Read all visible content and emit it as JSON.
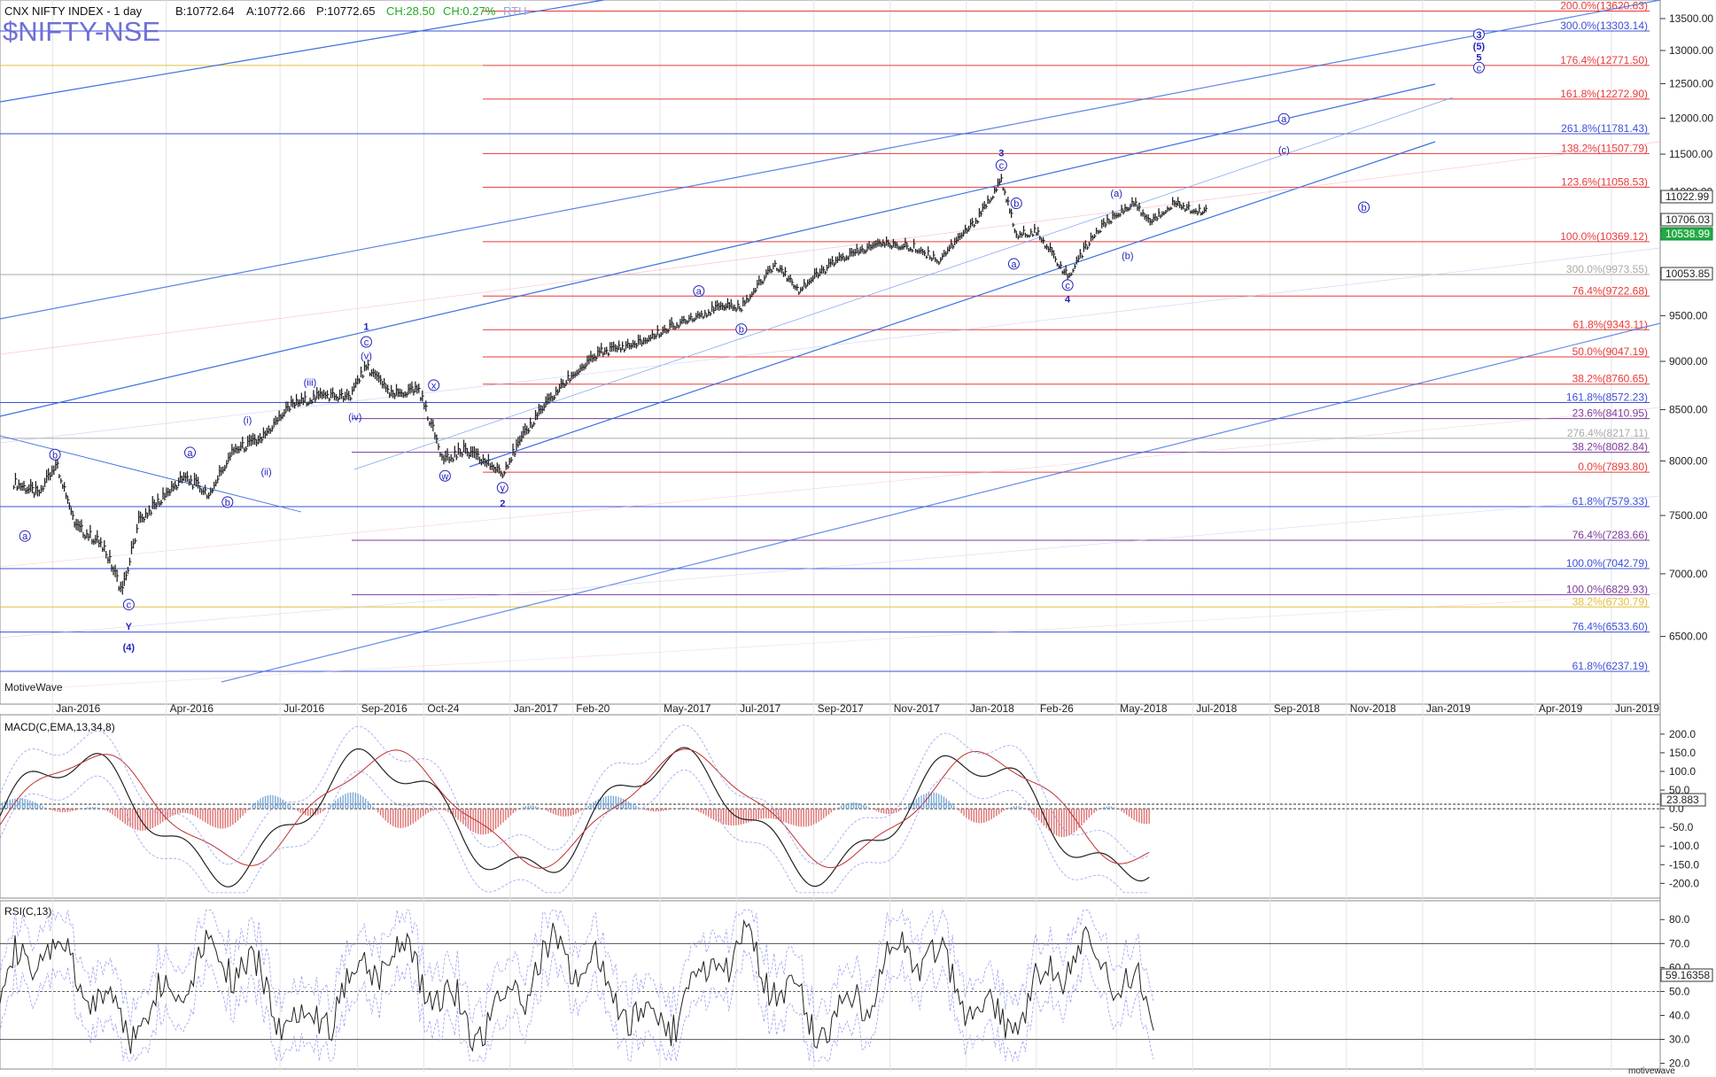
{
  "header": {
    "title": "CNX NIFTY INDEX - 1 day",
    "bid": "B:10772.64",
    "ask": "A:10772.66",
    "price": "P:10772.65",
    "change": "CH:28.50",
    "change_pct": "CH:0.27%",
    "session": "RTH",
    "symbol": "$NIFTY-NSE",
    "watermark": "MotiveWave",
    "footer_brand": "motivewave"
  },
  "colors": {
    "red_fib": "#e83a3a",
    "blue_fib": "#3d4fd8",
    "purple_fib": "#7a3a9a",
    "yellow_fib": "#e0c040",
    "gray_fib": "#aaaaaa",
    "channel": "#3d6fe0",
    "price_bar": "#222222",
    "macd_pos": "#7aaad8",
    "macd_neg": "#e07070",
    "wave_label": "#2222bb"
  },
  "chart_data": [
    {
      "type": "line",
      "title": "CNX NIFTY INDEX - 1 day",
      "y_ticks": [
        6500,
        7000,
        7500,
        8000,
        8500,
        9000,
        9500,
        10000,
        10500,
        11000,
        11500,
        12000,
        12500,
        13000,
        13500
      ],
      "y_tick_labels": [
        "6500.00",
        "7000.00",
        "7500.00",
        "8000.00",
        "8500.00",
        "9000.00",
        "9500.00",
        "10000.00",
        "10500.00",
        "11000.00",
        "11500.00",
        "12000.00",
        "12500.00",
        "13000.00",
        "13500.00"
      ],
      "ylim": [
        6000,
        13800
      ],
      "x_ticks": [
        "Jan-2016",
        "Apr-2016",
        "Jul-2016",
        "Sep-2016",
        "Oct-24",
        "Jan-2017",
        "Feb-20",
        "May-2017",
        "Jul-2017",
        "Sep-2017",
        "Nov-2017",
        "Jan-2018",
        "Feb-26",
        "May-2018",
        "Jul-2018",
        "Sep-2018",
        "Nov-2018",
        "Jan-2019",
        "Apr-2019",
        "Jun-2019"
      ],
      "close_path": [
        [
          "2015-12-01",
          7800
        ],
        [
          "2015-12-20",
          7700
        ],
        [
          "2016-01-05",
          7950
        ],
        [
          "2016-01-20",
          7400
        ],
        [
          "2016-02-10",
          7250
        ],
        [
          "2016-02-26",
          6850
        ],
        [
          "2016-03-10",
          7450
        ],
        [
          "2016-03-28",
          7650
        ],
        [
          "2016-04-15",
          7850
        ],
        [
          "2016-05-05",
          7700
        ],
        [
          "2016-05-25",
          8100
        ],
        [
          "2016-06-15",
          8200
        ],
        [
          "2016-07-10",
          8550
        ],
        [
          "2016-08-05",
          8650
        ],
        [
          "2016-08-25",
          8620
        ],
        [
          "2016-09-08",
          8950
        ],
        [
          "2016-09-28",
          8650
        ],
        [
          "2016-10-20",
          8700
        ],
        [
          "2016-11-09",
          8000
        ],
        [
          "2016-11-25",
          8100
        ],
        [
          "2016-12-26",
          7900
        ],
        [
          "2017-01-20",
          8400
        ],
        [
          "2017-02-15",
          8800
        ],
        [
          "2017-03-15",
          9100
        ],
        [
          "2017-04-15",
          9200
        ],
        [
          "2017-05-20",
          9450
        ],
        [
          "2017-06-20",
          9600
        ],
        [
          "2017-07-05",
          9600
        ],
        [
          "2017-08-01",
          10100
        ],
        [
          "2017-08-20",
          9800
        ],
        [
          "2017-09-20",
          10150
        ],
        [
          "2017-10-25",
          10350
        ],
        [
          "2017-11-20",
          10300
        ],
        [
          "2017-12-10",
          10150
        ],
        [
          "2018-01-10",
          10650
        ],
        [
          "2018-01-29",
          11150
        ],
        [
          "2018-02-10",
          10450
        ],
        [
          "2018-02-26",
          10500
        ],
        [
          "2018-03-23",
          9950
        ],
        [
          "2018-04-15",
          10500
        ],
        [
          "2018-05-01",
          10700
        ],
        [
          "2018-05-15",
          10850
        ],
        [
          "2018-05-28",
          10600
        ],
        [
          "2018-06-15",
          10850
        ],
        [
          "2018-07-05",
          10750
        ],
        [
          "2018-07-13",
          10772
        ]
      ],
      "last_prices": {
        "current": "10706.03",
        "box1": "11022.99",
        "box2": "10538.99",
        "box3": "10053.85"
      }
    },
    {
      "type": "line",
      "title": "MACD(C,EMA,13,34,8)",
      "y_ticks": [
        -200,
        -150,
        -100,
        -50,
        0,
        50,
        100,
        150,
        200
      ],
      "y_tick_labels": [
        "-200.0",
        "-150.0",
        "-100.0",
        "-50.0",
        "0.0",
        "50.0",
        "100.0",
        "150.0",
        "200.0"
      ],
      "ylim": [
        -230,
        240
      ],
      "last_value": "23.883"
    },
    {
      "type": "line",
      "title": "RSI(C,13)",
      "y_ticks": [
        20,
        30,
        40,
        50,
        60,
        70,
        80
      ],
      "y_tick_labels": [
        "20.0",
        "30.0",
        "40.0",
        "50.0",
        "60.0",
        "70.0",
        "80.0"
      ],
      "ylim": [
        18,
        86
      ],
      "last_value": "59.16358",
      "levels": [
        30,
        50,
        70
      ]
    }
  ],
  "fib_levels": [
    {
      "text": "200.0%(13620.63)",
      "kind": "red",
      "price": 13620.63
    },
    {
      "text": "300.0%(13303.14)",
      "kind": "blue",
      "price": 13303.14
    },
    {
      "text": "176.4%(12771.50)",
      "kind": "red",
      "price": 12771.5
    },
    {
      "text": "161.8%(12272.90)",
      "kind": "red",
      "price": 12272.9
    },
    {
      "text": "261.8%(11781.43)",
      "kind": "blue",
      "price": 11781.43
    },
    {
      "text": "138.2%(11507.79)",
      "kind": "red",
      "price": 11507.79
    },
    {
      "text": "123.6%(11058.53)",
      "kind": "red",
      "price": 11058.53
    },
    {
      "text": "100.0%(10369.12)",
      "kind": "red",
      "price": 10369.12
    },
    {
      "text": "300.0%(9973.55)",
      "kind": "gray",
      "price": 9973.55
    },
    {
      "text": "76.4%(9722.68)",
      "kind": "red",
      "price": 9722.68
    },
    {
      "text": "61.8%(9343.11)",
      "kind": "red",
      "price": 9343.11
    },
    {
      "text": "50.0%(9047.19)",
      "kind": "red",
      "price": 9047.19
    },
    {
      "text": "38.2%(8760.65)",
      "kind": "red",
      "price": 8760.65
    },
    {
      "text": "161.8%(8572.23)",
      "kind": "blue",
      "price": 8572.23
    },
    {
      "text": "23.6%(8410.95)",
      "kind": "purple",
      "price": 8410.95
    },
    {
      "text": "276.4%(8217.11)",
      "kind": "gray",
      "price": 8217.11
    },
    {
      "text": "38.2%(8082.84)",
      "kind": "purple",
      "price": 8082.84
    },
    {
      "text": "0.0%(7893.80)",
      "kind": "red",
      "price": 7893.8
    },
    {
      "text": "61.8%(7579.33)",
      "kind": "blue",
      "price": 7579.33
    },
    {
      "text": "76.4%(7283.66)",
      "kind": "purple",
      "price": 7283.66
    },
    {
      "text": "100.0%(7042.79)",
      "kind": "blue",
      "price": 7042.79
    },
    {
      "text": "100.0%(6829.93)",
      "kind": "purple",
      "price": 6829.93
    },
    {
      "text": "38.2%(6730.79)",
      "kind": "yellow",
      "price": 6730.79
    },
    {
      "text": "76.4%(6533.60)",
      "kind": "blue",
      "price": 6533.6
    },
    {
      "text": "61.8%(6237.19)",
      "kind": "blue",
      "price": 6237.19
    }
  ],
  "wave_labels": [
    {
      "text": "b",
      "circle": true,
      "date": "2016-01-03",
      "price": 8060
    },
    {
      "text": "a",
      "circle": true,
      "date": "2015-12-10",
      "price": 7320
    },
    {
      "text": "c",
      "circle": true,
      "date": "2016-03-02",
      "price": 6750
    },
    {
      "text": "Y",
      "circle": false,
      "date": "2016-03-02",
      "price": 6580
    },
    {
      "text": "(4)",
      "circle": false,
      "date": "2016-03-02",
      "price": 6420
    },
    {
      "text": "a",
      "circle": true,
      "date": "2016-04-20",
      "price": 8080
    },
    {
      "text": "b",
      "circle": true,
      "date": "2016-05-20",
      "price": 7620
    },
    {
      "text": "(i)",
      "circle": false,
      "date": "2016-06-05",
      "price": 8400
    },
    {
      "text": "(ii)",
      "circle": false,
      "date": "2016-06-20",
      "price": 7900
    },
    {
      "text": "(iii)",
      "circle": false,
      "date": "2016-07-25",
      "price": 8780
    },
    {
      "text": "(iv)",
      "circle": false,
      "date": "2016-08-30",
      "price": 8430
    },
    {
      "text": "(v)",
      "circle": false,
      "date": "2016-09-08",
      "price": 9060
    },
    {
      "text": "c",
      "circle": true,
      "date": "2016-09-08",
      "price": 9210
    },
    {
      "text": "1",
      "circle": false,
      "date": "2016-09-08",
      "price": 9380
    },
    {
      "text": "x",
      "circle": true,
      "date": "2016-11-01",
      "price": 8750
    },
    {
      "text": "w",
      "circle": true,
      "date": "2016-11-10",
      "price": 7860
    },
    {
      "text": "y",
      "circle": true,
      "date": "2016-12-26",
      "price": 7750
    },
    {
      "text": "2",
      "circle": false,
      "date": "2016-12-26",
      "price": 7610
    },
    {
      "text": "a",
      "circle": true,
      "date": "2017-06-01",
      "price": 9780
    },
    {
      "text": "b",
      "circle": true,
      "date": "2017-07-05",
      "price": 9350
    },
    {
      "text": "c",
      "circle": true,
      "date": "2018-01-29",
      "price": 11350
    },
    {
      "text": "3",
      "circle": false,
      "date": "2018-01-29",
      "price": 11520
    },
    {
      "text": "b",
      "circle": true,
      "date": "2018-02-10",
      "price": 10850
    },
    {
      "text": "a",
      "circle": true,
      "date": "2018-02-08",
      "price": 10100
    },
    {
      "text": "(a)",
      "circle": false,
      "date": "2018-05-01",
      "price": 10980
    },
    {
      "text": "(b)",
      "circle": false,
      "date": "2018-05-10",
      "price": 10200
    },
    {
      "text": "c",
      "circle": true,
      "date": "2018-03-23",
      "price": 9850
    },
    {
      "text": "4",
      "circle": false,
      "date": "2018-03-23",
      "price": 9690
    },
    {
      "text": "a",
      "circle": true,
      "date": "2018-09-12",
      "price": 11990
    },
    {
      "text": "(c)",
      "circle": false,
      "date": "2018-09-12",
      "price": 11560
    },
    {
      "text": "b",
      "circle": true,
      "date": "2018-11-15",
      "price": 10800
    },
    {
      "text": "3",
      "circle": true,
      "date": "2019-02-15",
      "price": 13250
    },
    {
      "text": "(5)",
      "circle": false,
      "date": "2019-02-15",
      "price": 13070
    },
    {
      "text": "5",
      "circle": false,
      "date": "2019-02-15",
      "price": 12900
    },
    {
      "text": "c",
      "circle": true,
      "date": "2019-02-15",
      "price": 12740
    }
  ]
}
